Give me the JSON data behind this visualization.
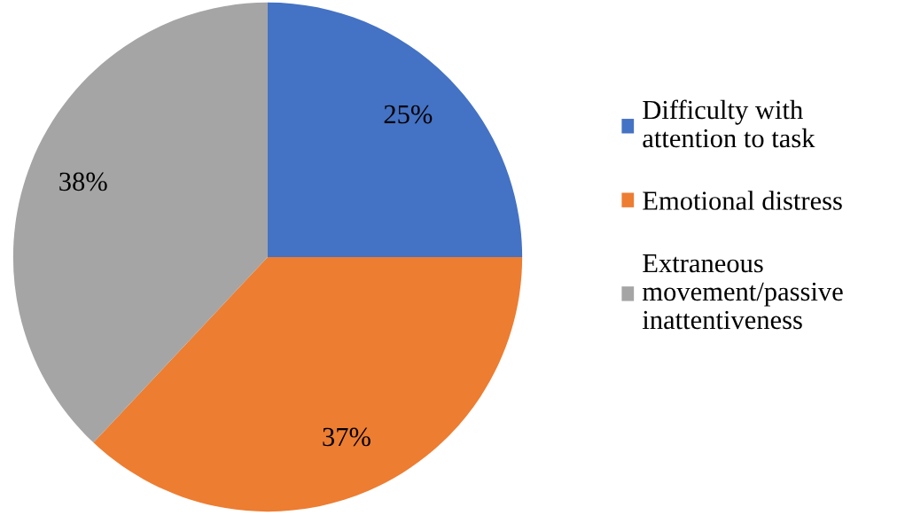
{
  "chart_data": {
    "type": "pie",
    "categories": [
      "Difficulty with\nattention to task",
      "Emotional distress",
      "Extraneous\nmovement/passive\ninattentiveness"
    ],
    "values": [
      25,
      37,
      38
    ],
    "colors": [
      "#4472c4",
      "#ed7d31",
      "#a5a5a5"
    ],
    "value_labels": [
      "25%",
      "37%",
      "38%"
    ],
    "legend": "right"
  }
}
